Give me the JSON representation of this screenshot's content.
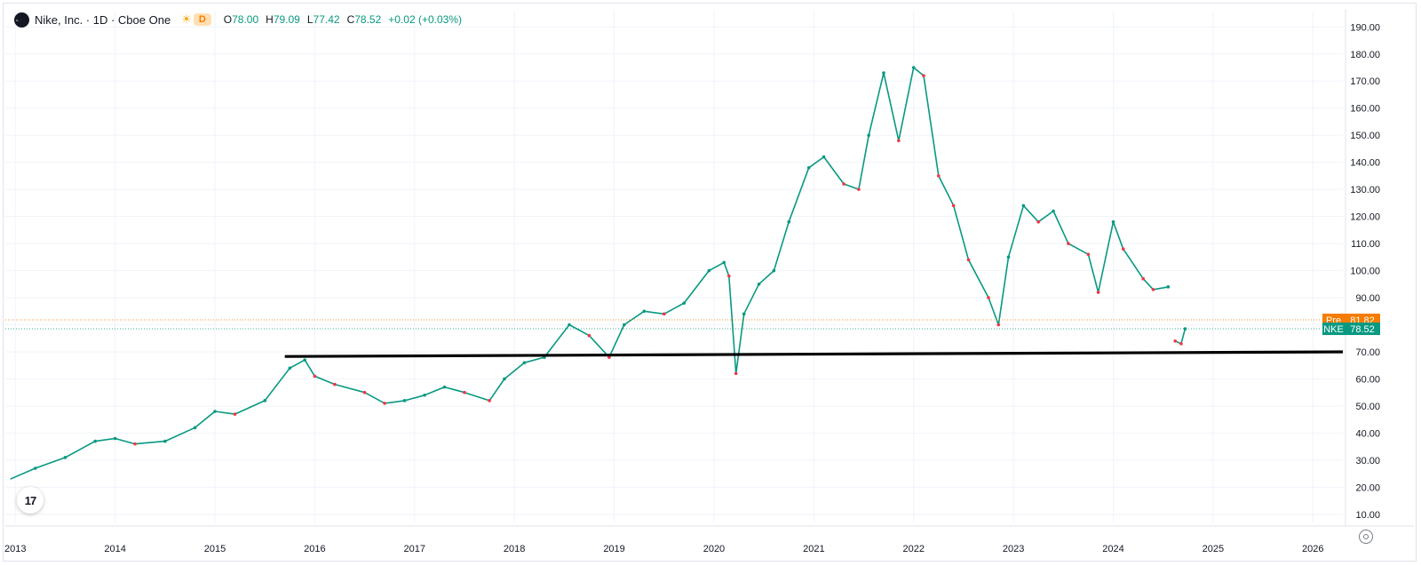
{
  "header": {
    "symbol_title": "Nike, Inc. · 1D · Cboe One",
    "mode_badge": "D",
    "ohlc": [
      {
        "k": "O",
        "v": "78.00"
      },
      {
        "k": "H",
        "v": "79.09"
      },
      {
        "k": "L",
        "v": "77.42"
      },
      {
        "k": "C",
        "v": "78.52"
      },
      {
        "k": "",
        "v": "+0.02 (+0.03%)"
      }
    ]
  },
  "price_tags": [
    {
      "label": "Pre",
      "value": "81.82",
      "price": 81.82,
      "color": "#f57c00"
    },
    {
      "label": "NKE",
      "value": "78.52",
      "price": 78.52,
      "color": "#089981"
    }
  ],
  "colors": {
    "up": "#089981",
    "down": "#f23645",
    "grid": "#f0f3fa",
    "trendline": "#000000"
  },
  "chart_data": {
    "type": "line",
    "y_ticks": [
      "190.00",
      "180.00",
      "170.00",
      "160.00",
      "150.00",
      "140.00",
      "130.00",
      "120.00",
      "110.00",
      "100.00",
      "90.00",
      "80.00",
      "70.00",
      "60.00",
      "50.00",
      "40.00",
      "30.00",
      "20.00",
      "10.00"
    ],
    "x_ticks": [
      "2013",
      "2014",
      "2015",
      "2016",
      "2017",
      "2018",
      "2019",
      "2020",
      "2021",
      "2022",
      "2023",
      "2024",
      "2025",
      "2026"
    ],
    "ylim": [
      7,
      196
    ],
    "xlim": [
      2012.9,
      2026.3
    ],
    "grid": true,
    "series": [
      {
        "values": [
          [
            2012.95,
            23
          ],
          [
            2013.2,
            27
          ],
          [
            2013.5,
            31
          ],
          [
            2013.8,
            37
          ],
          [
            2014.0,
            38
          ],
          [
            2014.2,
            36
          ],
          [
            2014.5,
            37
          ],
          [
            2014.8,
            42
          ],
          [
            2015.0,
            48
          ],
          [
            2015.2,
            47
          ],
          [
            2015.5,
            52
          ],
          [
            2015.75,
            64
          ],
          [
            2015.9,
            67
          ],
          [
            2016.0,
            61
          ],
          [
            2016.2,
            58
          ],
          [
            2016.5,
            55
          ],
          [
            2016.7,
            51
          ],
          [
            2016.9,
            52
          ],
          [
            2017.1,
            54
          ],
          [
            2017.3,
            57
          ],
          [
            2017.5,
            55
          ],
          [
            2017.75,
            52
          ],
          [
            2017.9,
            60
          ],
          [
            2018.1,
            66
          ],
          [
            2018.3,
            68
          ],
          [
            2018.55,
            80
          ],
          [
            2018.75,
            76
          ],
          [
            2018.95,
            68
          ],
          [
            2019.1,
            80
          ],
          [
            2019.3,
            85
          ],
          [
            2019.5,
            84
          ],
          [
            2019.7,
            88
          ],
          [
            2019.95,
            100
          ],
          [
            2020.1,
            103
          ],
          [
            2020.15,
            98
          ],
          [
            2020.22,
            62
          ],
          [
            2020.3,
            84
          ],
          [
            2020.45,
            95
          ],
          [
            2020.6,
            100
          ],
          [
            2020.75,
            118
          ],
          [
            2020.95,
            138
          ],
          [
            2021.1,
            142
          ],
          [
            2021.3,
            132
          ],
          [
            2021.45,
            130
          ],
          [
            2021.55,
            150
          ],
          [
            2021.7,
            173
          ],
          [
            2021.85,
            148
          ],
          [
            2022.0,
            175
          ],
          [
            2022.1,
            172
          ],
          [
            2022.25,
            135
          ],
          [
            2022.4,
            124
          ],
          [
            2022.55,
            104
          ],
          [
            2022.75,
            90
          ],
          [
            2022.85,
            80
          ],
          [
            2022.95,
            105
          ],
          [
            2023.1,
            124
          ],
          [
            2023.25,
            118
          ],
          [
            2023.4,
            122
          ],
          [
            2023.55,
            110
          ],
          [
            2023.75,
            106
          ],
          [
            2023.85,
            92
          ],
          [
            2024.0,
            118
          ],
          [
            2024.1,
            108
          ],
          [
            2024.3,
            97
          ],
          [
            2024.4,
            93
          ],
          [
            2024.55,
            94
          ],
          [
            2024.62,
            74
          ],
          [
            2024.68,
            73
          ],
          [
            2024.72,
            78.5
          ]
        ]
      }
    ],
    "trendline": [
      [
        2015.7,
        68.3
      ],
      [
        2026.3,
        70.0
      ]
    ]
  }
}
